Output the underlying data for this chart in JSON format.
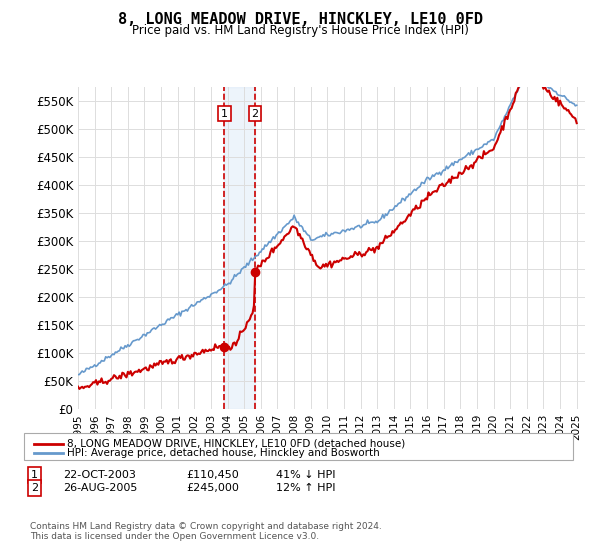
{
  "title": "8, LONG MEADOW DRIVE, HINCKLEY, LE10 0FD",
  "subtitle": "Price paid vs. HM Land Registry's House Price Index (HPI)",
  "ylim": [
    0,
    575000
  ],
  "yticks": [
    0,
    50000,
    100000,
    150000,
    200000,
    250000,
    300000,
    350000,
    400000,
    450000,
    500000,
    550000
  ],
  "ytick_labels": [
    "£0",
    "£50K",
    "£100K",
    "£150K",
    "£200K",
    "£250K",
    "£300K",
    "£350K",
    "£400K",
    "£450K",
    "£500K",
    "£550K"
  ],
  "x_start_year": 1995,
  "x_end_year": 2025,
  "transaction1_date": 2003.8,
  "transaction1_price": 110450,
  "transaction2_date": 2005.65,
  "transaction2_price": 245000,
  "property_line_color": "#cc0000",
  "hpi_line_color": "#6699cc",
  "vline_color": "#cc0000",
  "shade_color": "#cce0f5",
  "marker_color": "#cc0000",
  "legend_property_label": "8, LONG MEADOW DRIVE, HINCKLEY, LE10 0FD (detached house)",
  "legend_hpi_label": "HPI: Average price, detached house, Hinckley and Bosworth",
  "footer": "Contains HM Land Registry data © Crown copyright and database right 2024.\nThis data is licensed under the Open Government Licence v3.0.",
  "table_row1": [
    "1",
    "22-OCT-2003",
    "£110,450",
    "41% ↓ HPI"
  ],
  "table_row2": [
    "2",
    "26-AUG-2005",
    "£245,000",
    "12% ↑ HPI"
  ]
}
